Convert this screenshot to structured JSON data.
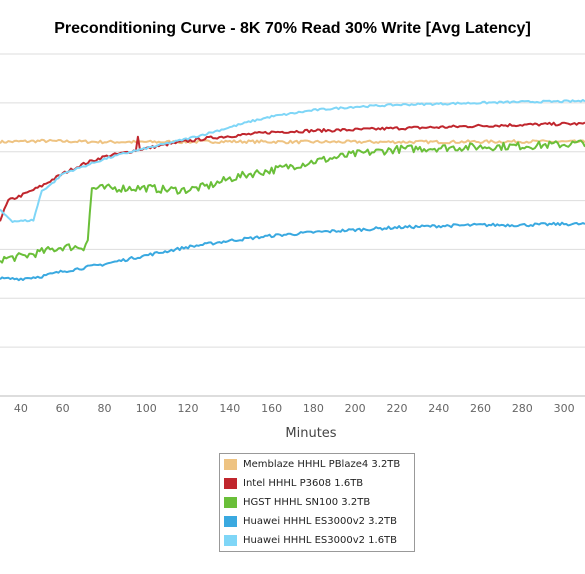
{
  "chart_data": {
    "type": "line",
    "title": "Preconditioning Curve - 8K 70% Read 30% Write [Avg Latency]",
    "xlabel": "Minutes",
    "ylabel": "",
    "xlim": [
      30,
      310
    ],
    "ylim": [
      0,
      7
    ],
    "x_ticks": [
      40,
      60,
      80,
      100,
      120,
      140,
      160,
      180,
      200,
      220,
      240,
      260,
      280,
      300
    ],
    "grid": true,
    "legend_position": "bottom-center",
    "series": [
      {
        "name": "Memblaze HHHL PBlaze4 3.2TB",
        "color": "#eec382",
        "x": [
          30,
          50,
          80,
          110,
          140,
          170,
          200,
          240,
          280,
          310
        ],
        "y": [
          5.2,
          5.22,
          5.2,
          5.2,
          5.21,
          5.2,
          5.2,
          5.2,
          5.21,
          5.2
        ]
      },
      {
        "name": "Intel HHHL P3608 1.6TB",
        "color": "#c0262d",
        "x": [
          30,
          34,
          40,
          50,
          60,
          70,
          80,
          90,
          95,
          96,
          97,
          100,
          110,
          120,
          130,
          140,
          150,
          160,
          180,
          200,
          220,
          240,
          260,
          280,
          300,
          310
        ],
        "y": [
          3.6,
          4.0,
          4.1,
          4.3,
          4.55,
          4.75,
          4.9,
          4.98,
          5.03,
          5.3,
          5.05,
          5.07,
          5.15,
          5.22,
          5.28,
          5.32,
          5.36,
          5.4,
          5.43,
          5.45,
          5.48,
          5.5,
          5.53,
          5.55,
          5.57,
          5.57
        ]
      },
      {
        "name": "HGST HHHL SN100 3.2TB",
        "color": "#6abf39",
        "x": [
          30,
          40,
          50,
          60,
          70,
          72,
          74,
          80,
          100,
          110,
          120,
          130,
          140,
          150,
          160,
          180,
          200,
          220,
          240,
          260,
          280,
          300,
          310
        ],
        "y": [
          2.8,
          2.85,
          2.95,
          3.05,
          3.05,
          3.2,
          4.25,
          4.25,
          4.26,
          4.22,
          4.22,
          4.3,
          4.45,
          4.55,
          4.62,
          4.8,
          4.95,
          5.05,
          5.08,
          5.1,
          5.12,
          5.15,
          5.18
        ]
      },
      {
        "name": "Huawei HHHL ES3000v2 3.2TB",
        "color": "#3aa9e0",
        "x": [
          30,
          40,
          50,
          55,
          60,
          80,
          100,
          120,
          140,
          160,
          180,
          200,
          220,
          240,
          260,
          280,
          300,
          310
        ],
        "y": [
          2.4,
          2.4,
          2.45,
          2.5,
          2.55,
          2.7,
          2.88,
          3.05,
          3.18,
          3.28,
          3.35,
          3.4,
          3.45,
          3.48,
          3.5,
          3.5,
          3.52,
          3.52
        ]
      },
      {
        "name": "Huawei HHHL ES3000v2 1.6TB",
        "color": "#7fd6f7",
        "x": [
          30,
          36,
          40,
          46,
          50,
          55,
          60,
          70,
          80,
          90,
          100,
          110,
          120,
          130,
          140,
          150,
          160,
          180,
          200,
          220,
          240,
          260,
          280,
          300,
          310
        ],
        "y": [
          3.8,
          3.58,
          3.58,
          3.6,
          4.2,
          4.35,
          4.55,
          4.7,
          4.85,
          4.97,
          5.07,
          5.17,
          5.27,
          5.38,
          5.5,
          5.62,
          5.72,
          5.85,
          5.92,
          5.96,
          5.98,
          6.0,
          6.02,
          6.03,
          6.04
        ]
      }
    ]
  }
}
